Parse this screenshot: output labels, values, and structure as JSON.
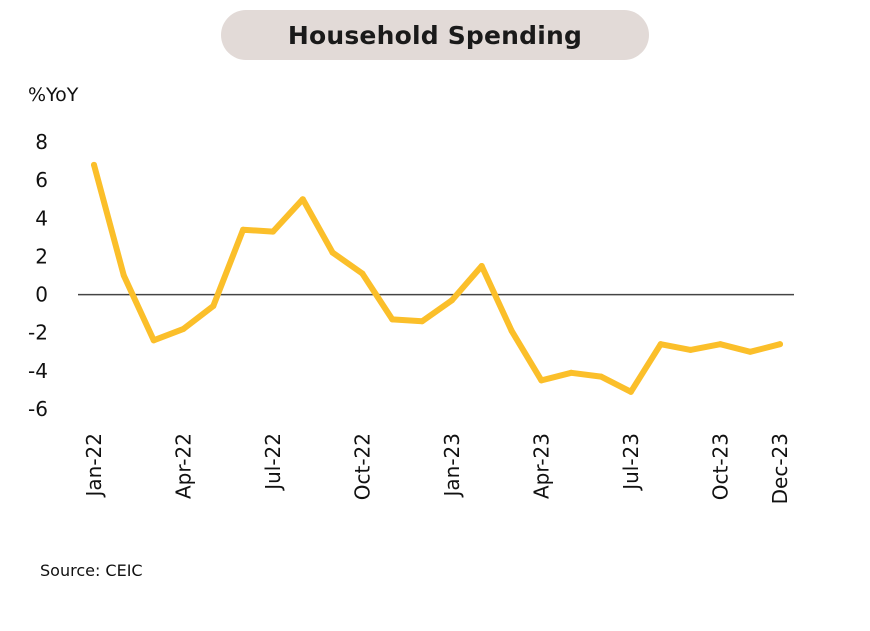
{
  "title": "Household Spending",
  "source": "Source: CEIC",
  "colors": {
    "line": "#fbbf2a",
    "zero_line": "#444444",
    "title_bg": "#e2dad7"
  },
  "chart_data": {
    "type": "line",
    "title": "Household Spending",
    "ylabel": "%YoY",
    "xlabel": "",
    "ylim": [
      -6,
      8
    ],
    "yticks": [
      8,
      6,
      4,
      2,
      0,
      -2,
      -4,
      -6
    ],
    "grid": false,
    "x": [
      "Jan-22",
      "Feb-22",
      "Mar-22",
      "Apr-22",
      "May-22",
      "Jun-22",
      "Jul-22",
      "Aug-22",
      "Sep-22",
      "Oct-22",
      "Nov-22",
      "Dec-22",
      "Jan-23",
      "Feb-23",
      "Mar-23",
      "Apr-23",
      "May-23",
      "Jun-23",
      "Jul-23",
      "Aug-23",
      "Sep-23",
      "Oct-23",
      "Nov-23",
      "Dec-23"
    ],
    "xtick_labels": [
      "Jan-22",
      "Apr-22",
      "Jul-22",
      "Oct-22",
      "Jan-23",
      "Apr-23",
      "Jul-23",
      "Oct-23",
      "Dec-23"
    ],
    "series": [
      {
        "values": [
          6.8,
          1.0,
          -2.4,
          -1.8,
          -0.6,
          3.4,
          3.3,
          5.0,
          2.2,
          1.1,
          -1.3,
          -1.4,
          -0.3,
          1.5,
          -1.9,
          -4.5,
          -4.1,
          -4.3,
          -5.1,
          -2.6,
          -2.9,
          -2.6,
          -3.0,
          -2.6
        ]
      }
    ]
  }
}
